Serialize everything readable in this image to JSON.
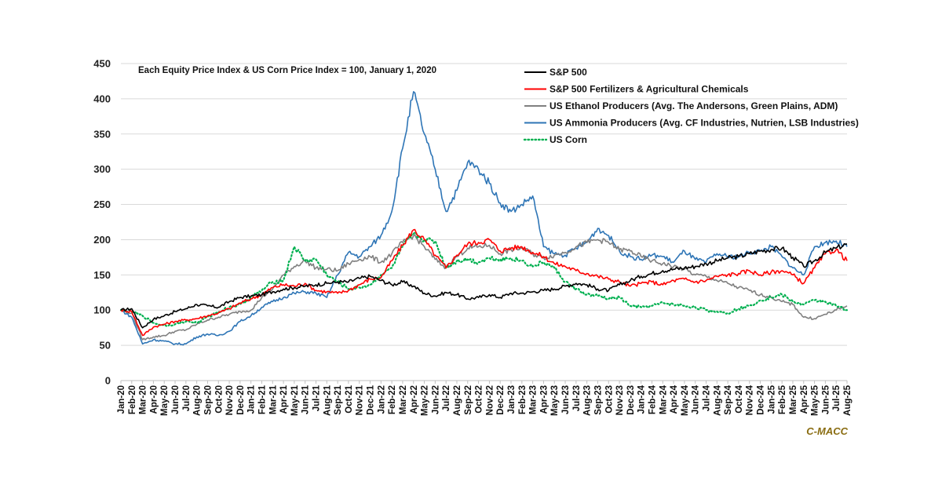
{
  "chart_data": {
    "type": "line",
    "title": "",
    "subtitle": "Each Equity Price Index & US Corn Price Index = 100, January 1, 2020",
    "xlabel": "",
    "ylabel": "",
    "ylim": [
      0,
      450
    ],
    "yticks": [
      0,
      50,
      100,
      150,
      200,
      250,
      300,
      350,
      400,
      450
    ],
    "grid": true,
    "legend_position": "top-right",
    "categories": [
      "Jan-20",
      "Feb-20",
      "Mar-20",
      "Apr-20",
      "May-20",
      "Jun-20",
      "Jul-20",
      "Aug-20",
      "Sep-20",
      "Oct-20",
      "Nov-20",
      "Dec-20",
      "Jan-21",
      "Feb-21",
      "Mar-21",
      "Apr-21",
      "May-21",
      "Jun-21",
      "Jul-21",
      "Aug-21",
      "Sep-21",
      "Oct-21",
      "Nov-21",
      "Dec-21",
      "Jan-22",
      "Feb-22",
      "Mar-22",
      "Apr-22",
      "May-22",
      "Jun-22",
      "Jul-22",
      "Aug-22",
      "Sep-22",
      "Oct-22",
      "Nov-22",
      "Dec-22",
      "Jan-23",
      "Feb-23",
      "Mar-23",
      "Apr-23",
      "May-23",
      "Jun-23",
      "Jul-23",
      "Aug-23",
      "Sep-23",
      "Oct-23",
      "Nov-23",
      "Dec-23",
      "Jan-24",
      "Feb-24",
      "Mar-24",
      "Apr-24",
      "May-24",
      "Jun-24",
      "Jul-24",
      "Aug-24",
      "Sep-24",
      "Oct-24",
      "Nov-24",
      "Dec-24",
      "Jan-25",
      "Feb-25",
      "Mar-25",
      "Apr-25",
      "May-25",
      "Jun-25",
      "Jul-25",
      "Aug-25"
    ],
    "series": [
      {
        "name": "S&P 500",
        "color": "#000000",
        "style": "solid",
        "values": [
          100,
          102,
          75,
          87,
          92,
          98,
          102,
          108,
          106,
          104,
          112,
          118,
          120,
          122,
          126,
          130,
          132,
          134,
          136,
          138,
          140,
          140,
          145,
          148,
          142,
          136,
          140,
          134,
          124,
          120,
          125,
          122,
          116,
          118,
          122,
          118,
          124,
          124,
          126,
          128,
          130,
          134,
          138,
          136,
          130,
          128,
          136,
          142,
          148,
          152,
          156,
          158,
          160,
          162,
          166,
          170,
          174,
          176,
          180,
          184,
          186,
          188,
          175,
          162,
          170,
          182,
          188,
          194
        ]
      },
      {
        "name": "S&P 500 Fertilizers & Agricultural Chemicals",
        "color": "#ff0000",
        "style": "solid",
        "values": [
          100,
          98,
          64,
          76,
          80,
          84,
          86,
          88,
          92,
          96,
          102,
          110,
          116,
          122,
          132,
          136,
          134,
          138,
          128,
          126,
          124,
          128,
          136,
          144,
          146,
          170,
          192,
          214,
          200,
          178,
          160,
          178,
          194,
          196,
          200,
          184,
          188,
          190,
          182,
          176,
          166,
          162,
          156,
          152,
          148,
          144,
          140,
          134,
          138,
          140,
          136,
          142,
          144,
          140,
          142,
          148,
          150,
          152,
          156,
          150,
          154,
          156,
          150,
          138,
          160,
          180,
          186,
          170
        ]
      },
      {
        "name": "US Ethanol Producers (Avg. The Andersons, Green Plains, ADM)",
        "color": "#808080",
        "style": "solid",
        "values": [
          100,
          96,
          58,
          62,
          64,
          70,
          72,
          80,
          86,
          90,
          94,
          98,
          100,
          118,
          130,
          150,
          162,
          170,
          160,
          158,
          156,
          166,
          172,
          176,
          168,
          180,
          196,
          206,
          190,
          172,
          160,
          176,
          188,
          190,
          192,
          180,
          186,
          188,
          180,
          174,
          178,
          182,
          190,
          196,
          200,
          196,
          186,
          184,
          176,
          170,
          166,
          162,
          158,
          150,
          148,
          142,
          138,
          132,
          128,
          122,
          118,
          112,
          108,
          90,
          88,
          94,
          100,
          106
        ]
      },
      {
        "name": "US Ammonia Producers (Avg. CF Industries, Nutrien, LSB Industries)",
        "color": "#2e75b6",
        "style": "solid",
        "values": [
          100,
          90,
          52,
          58,
          56,
          52,
          52,
          62,
          66,
          64,
          70,
          84,
          92,
          104,
          112,
          118,
          124,
          126,
          124,
          118,
          150,
          182,
          176,
          190,
          206,
          240,
          330,
          410,
          350,
          300,
          240,
          270,
          310,
          300,
          280,
          252,
          240,
          250,
          262,
          190,
          180,
          178,
          188,
          196,
          216,
          206,
          184,
          176,
          172,
          178,
          176,
          168,
          184,
          172,
          168,
          180,
          176,
          176,
          182,
          184,
          190,
          176,
          160,
          150,
          190,
          196,
          198,
          190
        ]
      },
      {
        "name": "US Corn",
        "color": "#00b050",
        "style": "dotted",
        "values": [
          100,
          98,
          92,
          82,
          78,
          80,
          84,
          82,
          90,
          98,
          104,
          108,
          118,
          128,
          140,
          142,
          190,
          170,
          172,
          150,
          140,
          130,
          132,
          136,
          150,
          160,
          190,
          208,
          200,
          198,
          160,
          170,
          172,
          168,
          174,
          172,
          174,
          170,
          162,
          168,
          160,
          140,
          130,
          122,
          120,
          116,
          118,
          106,
          104,
          106,
          110,
          108,
          106,
          104,
          100,
          98,
          96,
          102,
          106,
          114,
          118,
          122,
          112,
          108,
          114,
          112,
          106,
          100
        ]
      }
    ]
  },
  "watermark": "C-MACC"
}
